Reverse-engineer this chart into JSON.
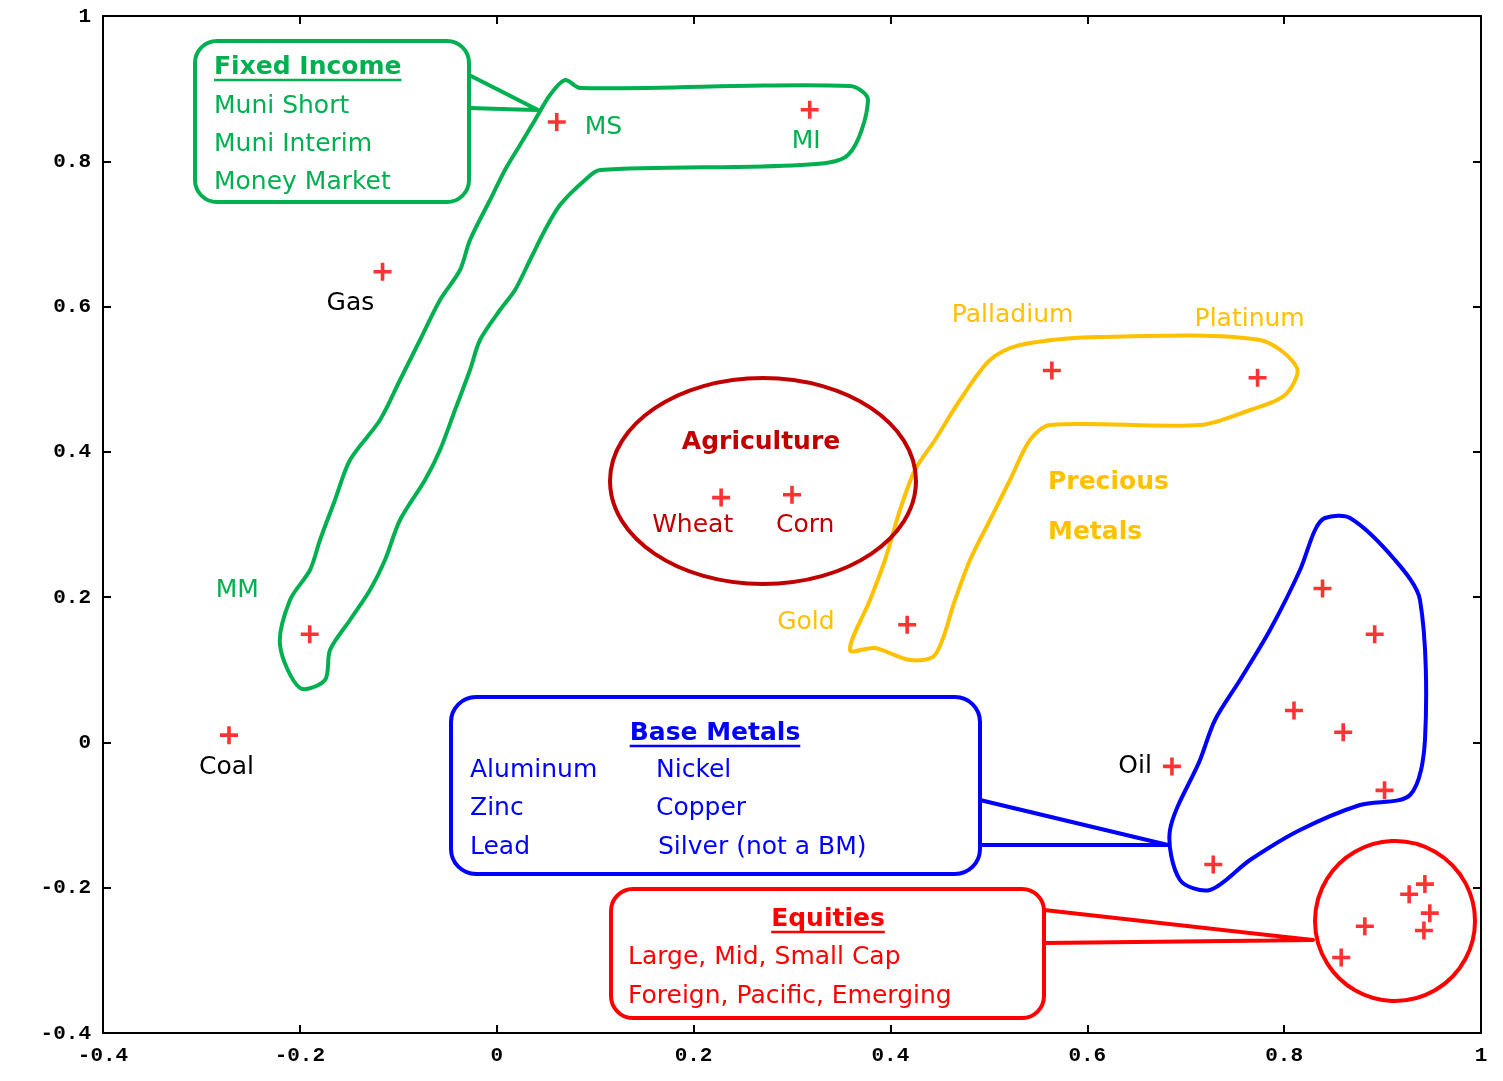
{
  "chart_data": {
    "type": "scatter",
    "x": [
      0.061,
      0.318,
      -0.116,
      -0.19,
      -0.272,
      0.228,
      0.3,
      0.564,
      0.773,
      0.417,
      0.686,
      0.839,
      0.892,
      0.81,
      0.86,
      0.902,
      0.728,
      0.943,
      0.927,
      0.948,
      0.882,
      0.942,
      0.858
    ],
    "series": [
      {
        "color": "#ff0000",
        "values": [
          0.854,
          0.871,
          0.648,
          0.149,
          0.01,
          0.337,
          0.341,
          0.512,
          0.502,
          0.162,
          -0.033,
          0.212,
          0.149,
          0.044,
          0.014,
          -0.066,
          -0.168,
          -0.195,
          -0.209,
          -0.235,
          -0.253,
          -0.259,
          -0.296
        ]
      }
    ],
    "xlim": [
      -0.4,
      1
    ],
    "xticks": [
      -0.4,
      -0.2,
      0,
      0.2,
      0.4,
      0.6,
      0.8,
      1
    ],
    "ylim": [
      -0.4,
      1
    ],
    "yticks": [
      -0.4,
      -0.2,
      0,
      0.2,
      0.4,
      0.6,
      0.8,
      1
    ],
    "marker": "cross",
    "grid": false,
    "annotations": [
      {
        "text": "MS",
        "x": 0.061,
        "y": 0.854
      },
      {
        "text": "MI",
        "x": 0.318,
        "y": 0.871
      },
      {
        "text": "Gas",
        "x": -0.116,
        "y": 0.648
      },
      {
        "text": "MM",
        "x": -0.19,
        "y": 0.149
      },
      {
        "text": "Coal",
        "x": -0.272,
        "y": 0.01
      },
      {
        "text": "Wheat",
        "x": 0.228,
        "y": 0.337
      },
      {
        "text": "Corn",
        "x": 0.3,
        "y": 0.341
      },
      {
        "text": "Palladium",
        "x": 0.564,
        "y": 0.512
      },
      {
        "text": "Platinum",
        "x": 0.773,
        "y": 0.502
      },
      {
        "text": "Gold",
        "x": 0.417,
        "y": 0.162
      },
      {
        "text": "Oil",
        "x": 0.686,
        "y": -0.033
      },
      "Fixed Income",
      "Muni Short",
      "Muni Interim",
      "Money Market",
      "Agriculture",
      "Precious Metals",
      "Base Metals",
      "Aluminum",
      "Zinc",
      "Lead",
      "Nickel",
      "Copper",
      "Silver (not a BM)",
      "Equities",
      "Large, Mid, Small Cap",
      "Foreign, Pacific, Emerging"
    ]
  }
}
